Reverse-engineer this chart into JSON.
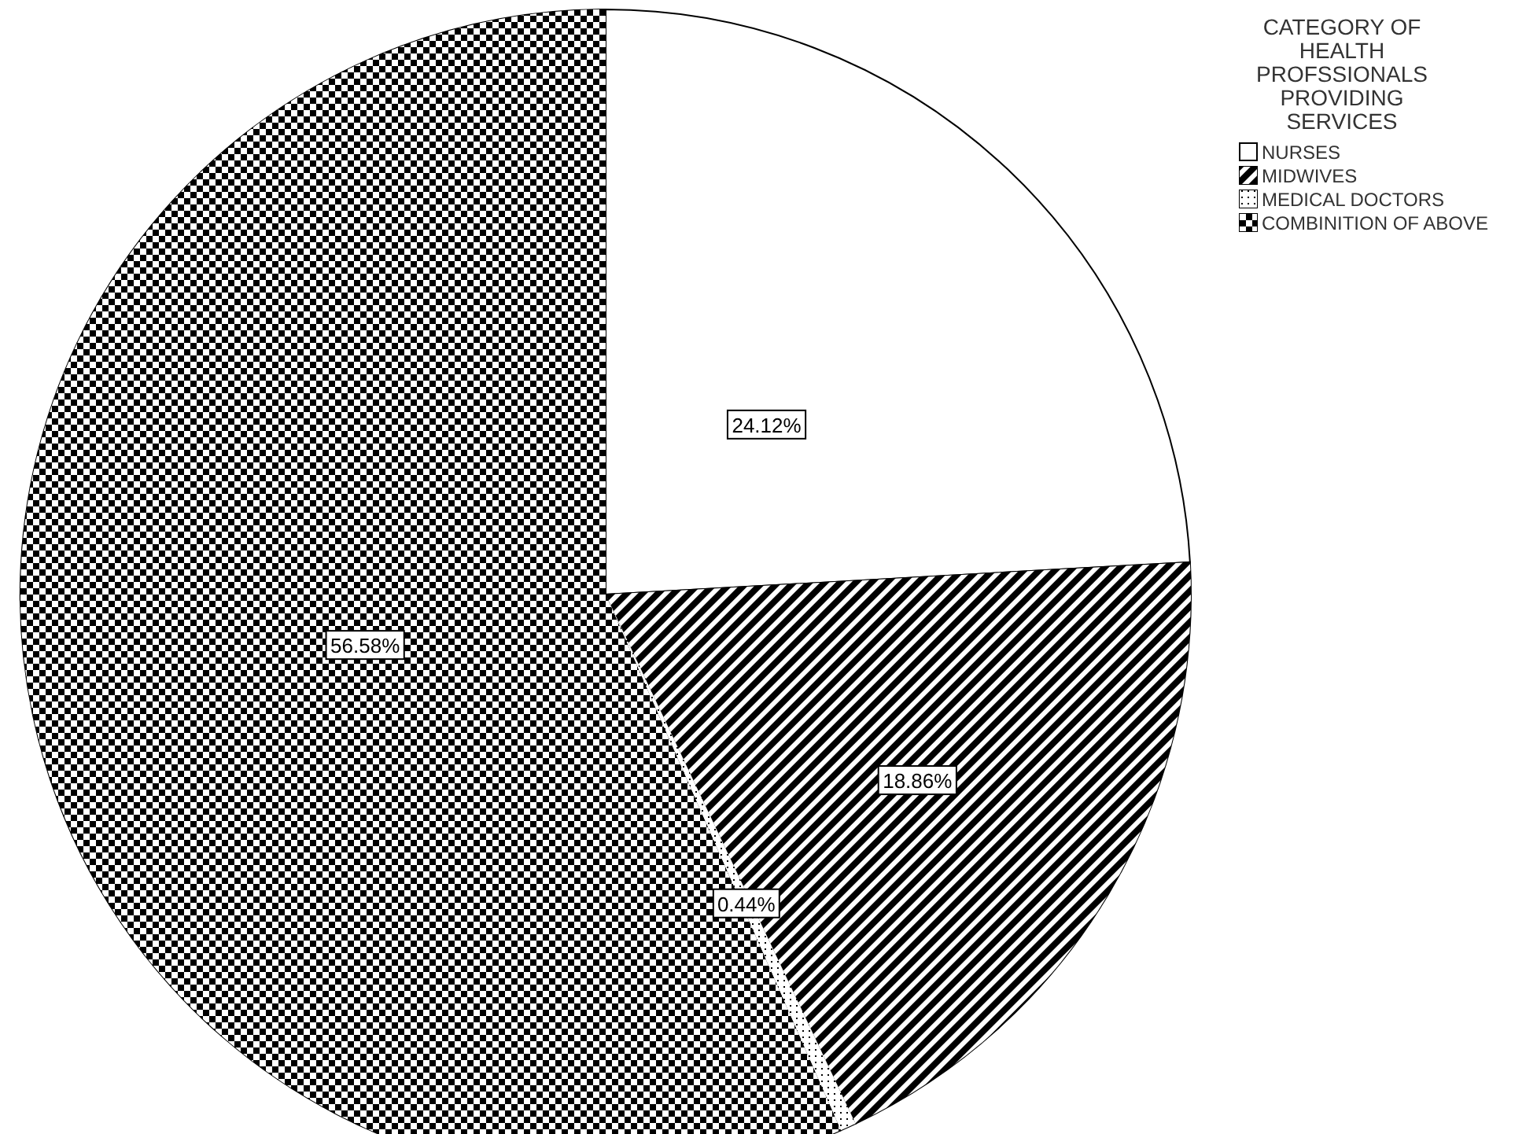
{
  "chart_data": {
    "type": "pie",
    "legend_title": "CATEGORY OF HEALTH PROFSSIONALS PROVIDING SERVICES",
    "categories": [
      "NURSES",
      "MIDWIVES",
      "MEDICAL DOCTORS",
      "COMBINITION OF ABOVE"
    ],
    "values": [
      24.12,
      18.86,
      0.44,
      56.58
    ],
    "value_labels": [
      "24.12%",
      "18.86%",
      "0.44%",
      "56.58%"
    ],
    "colors": [
      "#ffffff",
      "#6e6e6e",
      "#f0f0f0",
      "#808080"
    ],
    "legend": "top right"
  }
}
